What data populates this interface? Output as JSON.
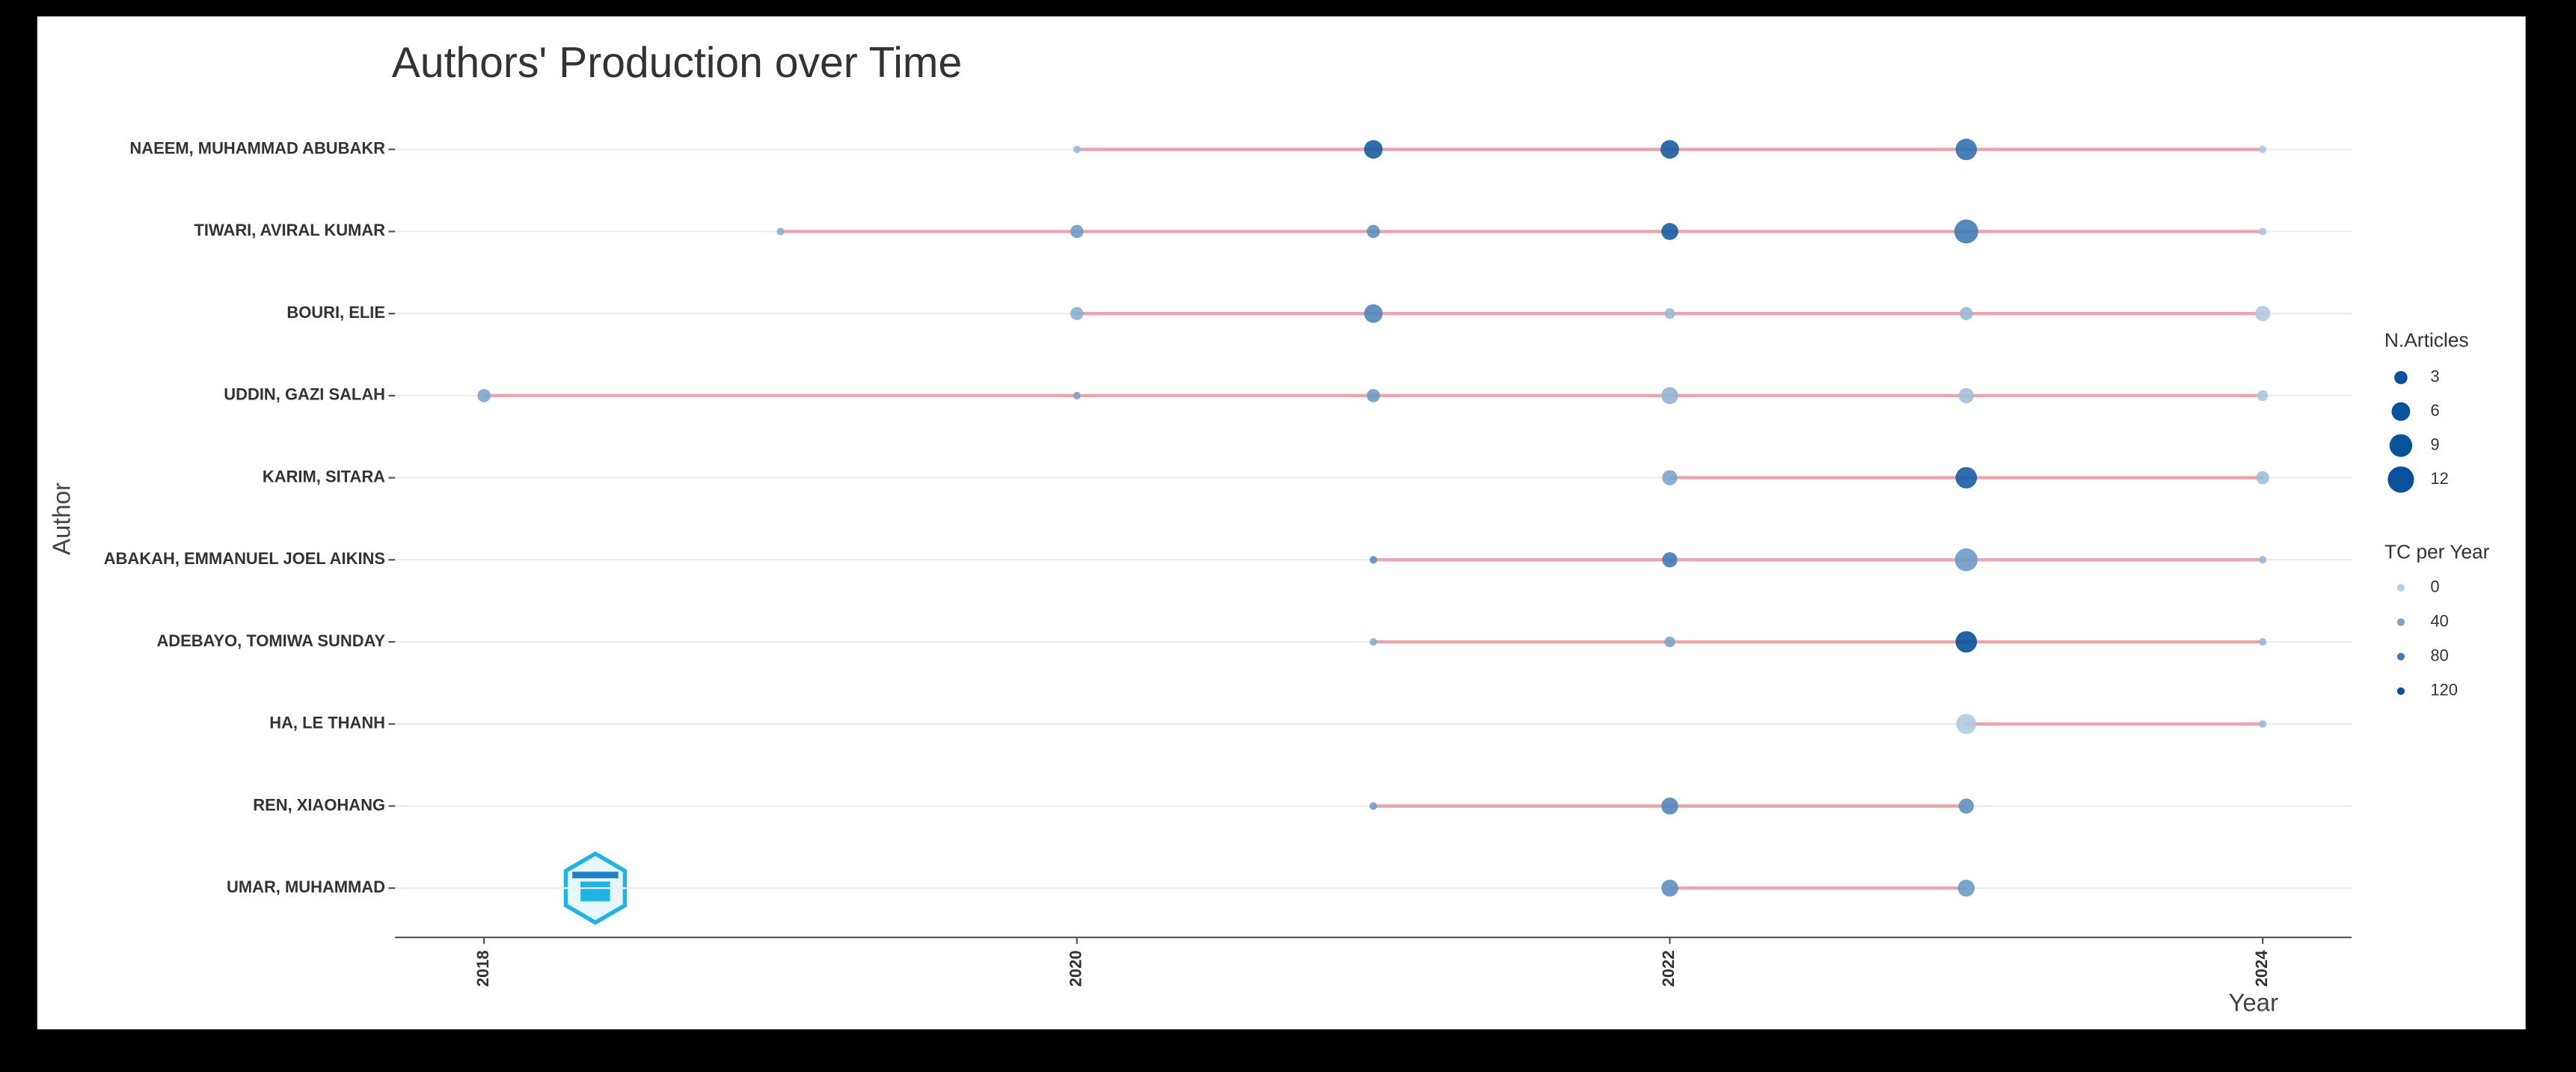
{
  "chart_data": {
    "type": "scatter",
    "title": "Authors' Production over Time",
    "x_label": "Year",
    "y_label": "Author",
    "xlim": [
      2017.7,
      2024.3
    ],
    "xticks": [
      2018,
      2020,
      2022,
      2024
    ],
    "line_color": "#e8a5ad",
    "color_low": "#b7cfe4",
    "color_high": "#08519c",
    "size_legend": {
      "title": "N.Articles",
      "values": [
        3,
        6,
        9,
        12
      ]
    },
    "color_legend": {
      "title": "TC per Year",
      "values": [
        0,
        40,
        80,
        120
      ]
    },
    "series": [
      {
        "name": "NAEEM, MUHAMMAD ABUBAKR",
        "x": [
          2020,
          2021,
          2022,
          2023,
          2024
        ],
        "articles": [
          1,
          6,
          6,
          8,
          1
        ],
        "tc_per_year": [
          20,
          110,
          110,
          90,
          5
        ]
      },
      {
        "name": "TIWARI, AVIRAL KUMAR",
        "x": [
          2019,
          2020,
          2021,
          2022,
          2023,
          2024
        ],
        "articles": [
          1,
          3,
          3,
          5,
          10,
          1
        ],
        "tc_per_year": [
          30,
          50,
          60,
          110,
          80,
          10
        ]
      },
      {
        "name": "BOURI, ELIE",
        "x": [
          2020,
          2021,
          2022,
          2023,
          2024
        ],
        "articles": [
          3,
          6,
          2,
          3,
          4
        ],
        "tc_per_year": [
          30,
          70,
          20,
          20,
          5
        ]
      },
      {
        "name": "UDDIN, GAZI SALAH",
        "x": [
          2018,
          2020,
          2021,
          2022,
          2023,
          2024
        ],
        "articles": [
          3,
          1,
          3,
          5,
          4,
          2
        ],
        "tc_per_year": [
          40,
          40,
          50,
          25,
          15,
          10
        ]
      },
      {
        "name": "KARIM, SITARA",
        "x": [
          2022,
          2023,
          2024
        ],
        "articles": [
          4,
          8,
          3
        ],
        "tc_per_year": [
          40,
          110,
          15
        ]
      },
      {
        "name": "ABAKAH, EMMANUEL JOEL AIKINS",
        "x": [
          2021,
          2022,
          2023,
          2024
        ],
        "articles": [
          1,
          4,
          9,
          1
        ],
        "tc_per_year": [
          60,
          80,
          50,
          20
        ]
      },
      {
        "name": "ADEBAYO, TOMIWA SUNDAY",
        "x": [
          2021,
          2022,
          2023,
          2024
        ],
        "articles": [
          1,
          2,
          8,
          1
        ],
        "tc_per_year": [
          30,
          40,
          120,
          20
        ]
      },
      {
        "name": "HA, LE THANH",
        "x": [
          2023,
          2024
        ],
        "articles": [
          7,
          1
        ],
        "tc_per_year": [
          5,
          20
        ]
      },
      {
        "name": "REN, XIAOHANG",
        "x": [
          2021,
          2022,
          2023
        ],
        "articles": [
          1,
          5,
          4
        ],
        "tc_per_year": [
          50,
          70,
          60
        ]
      },
      {
        "name": "UMAR, MUHAMMAD",
        "x": [
          2022,
          2023
        ],
        "articles": [
          5,
          5
        ],
        "tc_per_year": [
          60,
          50
        ]
      }
    ]
  }
}
